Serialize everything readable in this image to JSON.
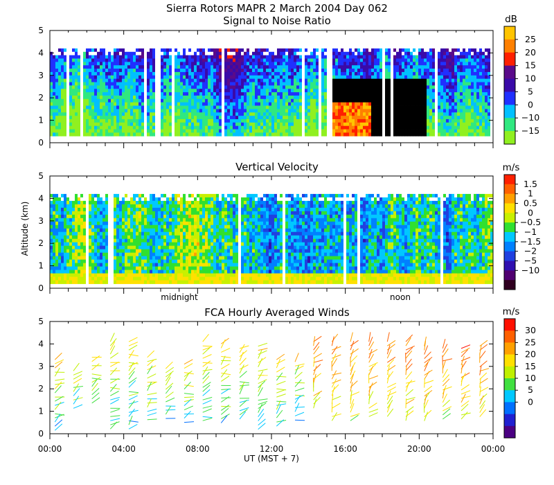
{
  "figure": {
    "title": "Sierra Rotors  MAPR  2 March 2004 Day 062",
    "x_axis_label": "UT  (MST + 7)",
    "x_tick_labels": [
      "00:00",
      "04:00",
      "08:00",
      "12:00",
      "16:00",
      "20:00",
      "00:00"
    ],
    "y_axis_label": "Altitude (km)",
    "time_markers": [
      "midnight",
      "noon"
    ]
  },
  "chart_data": [
    {
      "type": "heatmap",
      "title": "Signal to Noise Ratio",
      "xlabel": "",
      "ylabel": "",
      "xlim": [
        0,
        24
      ],
      "ylim": [
        0,
        5
      ],
      "y_ticks": [
        "0",
        "1",
        "2",
        "3",
        "4",
        "5"
      ],
      "data_top_km": 4.2,
      "data_bottom_km": 0.3,
      "colorbar": {
        "unit": "dB",
        "labels": [
          "25",
          "20",
          "15",
          "10",
          "5",
          "0",
          "−10",
          "−15"
        ],
        "colors": [
          "#ffc400",
          "#ff8000",
          "#ff2000",
          "#5a0a8a",
          "#3a0aa8",
          "#2030ff",
          "#00c0ff",
          "#30e880",
          "#90f020"
        ]
      }
    },
    {
      "type": "heatmap",
      "title": "Vertical Velocity",
      "xlabel": "",
      "ylabel": "Altitude (km)",
      "xlim": [
        0,
        24
      ],
      "ylim": [
        0,
        5
      ],
      "y_ticks": [
        "0",
        "1",
        "2",
        "3",
        "4",
        "5"
      ],
      "data_top_km": 4.2,
      "data_bottom_km": 0.2,
      "colorbar": {
        "unit": "m/s",
        "labels": [
          "1.5",
          "1",
          "0.5",
          "0",
          "−0.5",
          "−1",
          "−1.5",
          "−2",
          "−5",
          "−10"
        ],
        "colors": [
          "#ff2000",
          "#ff6000",
          "#ffa000",
          "#ffe000",
          "#c8f000",
          "#30e030",
          "#00c8ff",
          "#0080ff",
          "#2040e0",
          "#3010b0",
          "#500070",
          "#300020"
        ]
      }
    },
    {
      "type": "scatter",
      "title": "FCA Hourly Averaged Winds",
      "xlabel": "UT  (MST + 7)",
      "ylabel": "",
      "xlim": [
        0,
        24
      ],
      "ylim": [
        0,
        5
      ],
      "y_ticks": [
        "0",
        "1",
        "2",
        "3",
        "4",
        "5"
      ],
      "x": [
        0.5,
        1.5,
        2.5,
        3.5,
        4.5,
        5.5,
        6.5,
        7.5,
        8.5,
        9.5,
        10.5,
        11.5,
        12.5,
        13.5,
        14.5,
        15.5,
        16.5,
        17.5,
        18.5,
        19.5,
        20.5,
        21.5,
        22.5,
        23.5
      ],
      "top_km": [
        3.3,
        2.8,
        3.4,
        4.1,
        4.1,
        3.4,
        2.9,
        3.1,
        4.1,
        4.0,
        3.8,
        3.9,
        3.3,
        3.2,
        4.1,
        4.1,
        4.1,
        4.1,
        4.1,
        4.1,
        3.9,
        3.8,
        3.8,
        3.9
      ],
      "bottom_km": [
        0.1,
        1.0,
        1.2,
        0.1,
        0.2,
        0.5,
        0.5,
        0.5,
        0.5,
        0.4,
        0.5,
        0.1,
        0.3,
        0.6,
        1.0,
        0.5,
        0.5,
        0.6,
        0.6,
        0.5,
        0.5,
        0.6,
        0.6,
        0.6
      ],
      "colorbar": {
        "unit": "m/s",
        "labels": [
          "30",
          "25",
          "20",
          "15",
          "10",
          "5",
          "0"
        ],
        "colors": [
          "#ff1000",
          "#ff6000",
          "#ffa000",
          "#ffe000",
          "#c0f000",
          "#40e040",
          "#00c8ff",
          "#0070ff",
          "#2020d0",
          "#4b0082"
        ]
      }
    }
  ]
}
